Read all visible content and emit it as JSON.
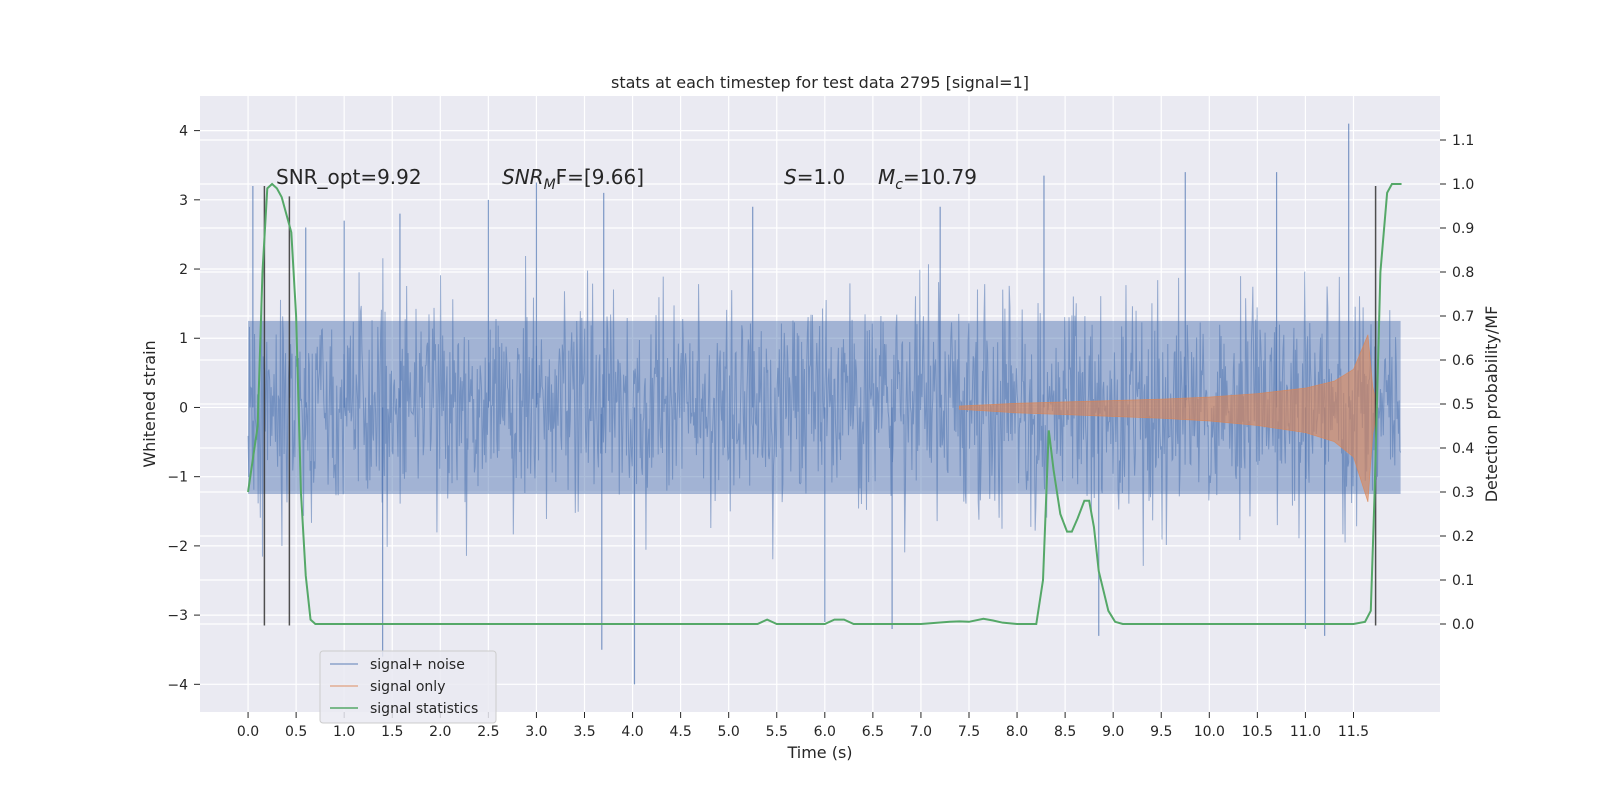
{
  "chart_data": {
    "type": "line",
    "title": "stats at each timestep for test data 2795 [signal=1]",
    "xlabel": "Time (s)",
    "ylabel_left": "Whitened strain",
    "ylabel_right": "Detection probability/MF",
    "xlim": [
      -0.5,
      12.4
    ],
    "ylim_left": [
      -4.4,
      4.5
    ],
    "ylim_right": [
      -0.2,
      1.2
    ],
    "x_ticks": [
      0.0,
      0.5,
      1.0,
      1.5,
      2.0,
      2.5,
      3.0,
      3.5,
      4.0,
      4.5,
      5.0,
      5.5,
      6.0,
      6.5,
      7.0,
      7.5,
      8.0,
      8.5,
      9.0,
      9.5,
      10.0,
      10.5,
      11.0,
      11.5
    ],
    "x_tick_labels": [
      "0.0",
      "0.5",
      "1.0",
      "1.5",
      "2.0",
      "2.5",
      "3.0",
      "3.5",
      "4.0",
      "4.5",
      "5.0",
      "5.5",
      "6.0",
      "6.5",
      "7.0",
      "7.5",
      "8.0",
      "8.5",
      "9.0",
      "9.5",
      "10.0",
      "10.5",
      "11.0",
      "11.5"
    ],
    "y_left_ticks": [
      4,
      3,
      2,
      1,
      0,
      -1,
      -2,
      -3,
      -4
    ],
    "y_left_tick_labels": [
      "4",
      "3",
      "2",
      "1",
      "0",
      "−1",
      "−2",
      "−3",
      "−4"
    ],
    "y_right_ticks": [
      1.1,
      1.0,
      0.9,
      0.8,
      0.7,
      0.6,
      0.5,
      0.4,
      0.3,
      0.2,
      0.1,
      0.0
    ],
    "y_right_tick_labels": [
      "1.1",
      "1.0",
      "0.9",
      "0.8",
      "0.7",
      "0.6",
      "0.5",
      "0.4",
      "0.3",
      "0.2",
      "0.1",
      "0.0"
    ],
    "annotations": {
      "snr_opt": "SNR_opt=9.92",
      "snr_mf_main": "SNR",
      "snr_mf_sub": "M",
      "snr_mf_rest": "F=[9.66]",
      "s_main": "S",
      "s_rest": "=1.0",
      "mc_main": "M",
      "mc_sub": "c",
      "mc_rest": "=10.79"
    },
    "legend": {
      "placement": "lower-left",
      "entries": [
        "signal+ noise",
        "signal only",
        "signal statistics"
      ]
    },
    "series": [
      {
        "name": "signal+ noise",
        "color": "#4c72b0",
        "style": "dense noise, core amplitude ~±1.3, spikes up to ~±3",
        "x_range": [
          0.0,
          11.99
        ],
        "spikes": [
          {
            "x": 0.05,
            "y": 3.2
          },
          {
            "x": 0.6,
            "y": 2.6
          },
          {
            "x": 1.0,
            "y": 2.7
          },
          {
            "x": 1.4,
            "y": -3.6
          },
          {
            "x": 1.58,
            "y": 2.8
          },
          {
            "x": 2.5,
            "y": 3.0
          },
          {
            "x": 3.0,
            "y": 3.25
          },
          {
            "x": 3.68,
            "y": -3.5
          },
          {
            "x": 3.7,
            "y": 3.1
          },
          {
            "x": 4.02,
            "y": -4.0
          },
          {
            "x": 5.25,
            "y": 2.9
          },
          {
            "x": 6.0,
            "y": -3.1
          },
          {
            "x": 6.7,
            "y": -3.2
          },
          {
            "x": 7.2,
            "y": 2.9
          },
          {
            "x": 8.28,
            "y": 3.35
          },
          {
            "x": 8.85,
            "y": -3.3
          },
          {
            "x": 9.75,
            "y": 3.4
          },
          {
            "x": 10.7,
            "y": 3.4
          },
          {
            "x": 11.0,
            "y": -3.2
          },
          {
            "x": 11.2,
            "y": -3.3
          },
          {
            "x": 11.45,
            "y": 4.1
          }
        ]
      },
      {
        "name": "signal only",
        "color": "#dd8452",
        "style": "chirp envelope growing toward merger",
        "envelope": [
          {
            "x": 7.4,
            "y": 0.02
          },
          {
            "x": 8.0,
            "y": 0.06
          },
          {
            "x": 8.5,
            "y": 0.08
          },
          {
            "x": 9.0,
            "y": 0.1
          },
          {
            "x": 9.5,
            "y": 0.12
          },
          {
            "x": 10.0,
            "y": 0.15
          },
          {
            "x": 10.5,
            "y": 0.2
          },
          {
            "x": 11.0,
            "y": 0.28
          },
          {
            "x": 11.3,
            "y": 0.38
          },
          {
            "x": 11.5,
            "y": 0.55
          },
          {
            "x": 11.65,
            "y": 1.05
          },
          {
            "x": 11.7,
            "y": 0.3
          },
          {
            "x": 11.75,
            "y": 0.0
          }
        ]
      },
      {
        "name": "signal statistics",
        "color": "#55a868",
        "axis": "right",
        "x": [
          0.0,
          0.1,
          0.15,
          0.2,
          0.25,
          0.3,
          0.35,
          0.45,
          0.5,
          0.55,
          0.6,
          0.65,
          0.7,
          0.8,
          1.0,
          2.0,
          3.0,
          4.0,
          5.0,
          5.3,
          5.4,
          5.5,
          5.6,
          6.0,
          6.1,
          6.2,
          6.3,
          7.0,
          7.3,
          7.4,
          7.5,
          7.65,
          7.75,
          7.85,
          8.0,
          8.2,
          8.27,
          8.33,
          8.38,
          8.45,
          8.52,
          8.57,
          8.63,
          8.7,
          8.75,
          8.8,
          8.85,
          8.95,
          9.02,
          9.1,
          9.5,
          10.0,
          10.5,
          11.0,
          11.3,
          11.5,
          11.62,
          11.68,
          11.72,
          11.78,
          11.85,
          11.9,
          11.95,
          12.0
        ],
        "y": [
          0.3,
          0.45,
          0.8,
          0.99,
          1.0,
          0.99,
          0.97,
          0.89,
          0.7,
          0.3,
          0.11,
          0.01,
          0.0,
          0.0,
          0.0,
          0.0,
          0.0,
          0.0,
          0.0,
          0.0,
          0.01,
          0.0,
          0.0,
          0.0,
          0.01,
          0.01,
          0.0,
          0.0,
          0.005,
          0.006,
          0.005,
          0.012,
          0.008,
          0.003,
          0.0,
          0.0,
          0.1,
          0.44,
          0.35,
          0.25,
          0.21,
          0.21,
          0.24,
          0.28,
          0.28,
          0.22,
          0.12,
          0.03,
          0.005,
          0.0,
          0.0,
          0.0,
          0.0,
          0.0,
          0.0,
          0.0,
          0.005,
          0.03,
          0.3,
          0.8,
          0.98,
          1.0,
          1.0,
          1.0
        ]
      }
    ],
    "vertical_markers": [
      {
        "x": 0.17,
        "y_from": -3.15,
        "y_to": 3.2
      },
      {
        "x": 0.43,
        "y_from": -3.15,
        "y_to": 3.05
      },
      {
        "x": 11.73,
        "y_from": -3.15,
        "y_to": 3.2
      }
    ]
  }
}
